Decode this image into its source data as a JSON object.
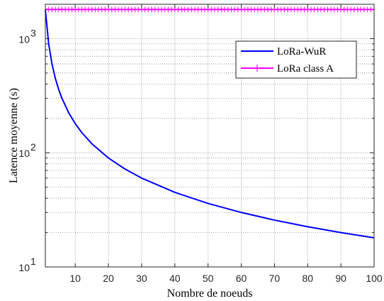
{
  "chart_data": {
    "type": "line",
    "title": "",
    "xlabel": "Nombre de noeuds",
    "ylabel": "Latence moyenne (s)",
    "xlim": [
      1,
      100
    ],
    "ylim": [
      10,
      2000
    ],
    "yscale": "log",
    "grid": true,
    "legend_position": "top-right",
    "x_ticks": [
      10,
      20,
      30,
      40,
      50,
      60,
      70,
      80,
      90,
      100
    ],
    "x_tick_labels": [
      "10",
      "20",
      "30",
      "40",
      "50",
      "60",
      "70",
      "80",
      "90",
      "100"
    ],
    "y_ticks": [
      10,
      100,
      1000
    ],
    "y_tick_labels": [
      {
        "base": "10",
        "exp": "1"
      },
      {
        "base": "10",
        "exp": "2"
      },
      {
        "base": "10",
        "exp": "3"
      }
    ],
    "series": [
      {
        "name": "LoRa-WuR",
        "color": "#0000ff",
        "marker": "none",
        "x": [
          1,
          2,
          3,
          4,
          5,
          6,
          8,
          10,
          12,
          15,
          20,
          25,
          30,
          40,
          50,
          60,
          70,
          80,
          90,
          100
        ],
        "y": [
          1800,
          900,
          600,
          450,
          360,
          300,
          225,
          180,
          150,
          120,
          90,
          72,
          60,
          45,
          36,
          30,
          25.7,
          22.5,
          20,
          18
        ]
      },
      {
        "name": "LoRa class A",
        "color": "#ff00ff",
        "marker": "plus",
        "x": [
          1,
          100
        ],
        "y": [
          1800,
          1800
        ]
      }
    ]
  }
}
